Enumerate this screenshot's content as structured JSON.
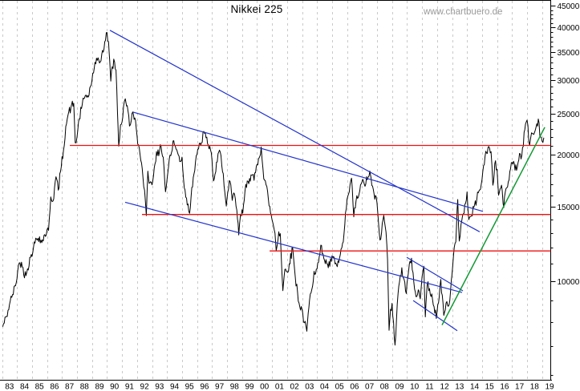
{
  "title": "Nikkei 225",
  "watermark": "www.chartbuero.de",
  "colors": {
    "price": "#000000",
    "trend": "#2233cc",
    "support": "#ee1111",
    "uptrend": "#119933",
    "grid": "#c9c9c9",
    "axis": "#000000",
    "watermark": "#9a9a9a"
  },
  "chart_data": {
    "type": "line",
    "title": "Nikkei 225",
    "x_axis": {
      "unit": "year",
      "first_year": 1983,
      "last_year": 2019,
      "labels": [
        "83",
        "84",
        "85",
        "86",
        "87",
        "88",
        "89",
        "90",
        "91",
        "92",
        "93",
        "94",
        "95",
        "96",
        "97",
        "98",
        "99",
        "00",
        "01",
        "02",
        "03",
        "04",
        "05",
        "06",
        "07",
        "08",
        "09",
        "10",
        "11",
        "12",
        "13",
        "14",
        "15",
        "16",
        "17",
        "18",
        "19"
      ]
    },
    "y_axis": {
      "scale": "log",
      "labeled_ticks": [
        45000,
        40000,
        35000,
        30000,
        25000,
        20000,
        15000,
        10000
      ],
      "minor_tick_step": 1000,
      "minor_tick_min": 6000,
      "minor_tick_max": 45000,
      "legend_position": "none",
      "grid": "vertical-dashed"
    },
    "series": [
      {
        "name": "Nikkei 225",
        "color_key": "price",
        "points": [
          [
            1983.05,
            7800
          ],
          [
            1983.3,
            8250
          ],
          [
            1983.5,
            8800
          ],
          [
            1983.7,
            9300
          ],
          [
            1983.9,
            9750
          ],
          [
            1984.1,
            10900
          ],
          [
            1984.3,
            11100
          ],
          [
            1984.45,
            10350
          ],
          [
            1984.7,
            10700
          ],
          [
            1984.9,
            11400
          ],
          [
            1985.1,
            12050
          ],
          [
            1985.3,
            12600
          ],
          [
            1985.5,
            12750
          ],
          [
            1985.65,
            12350
          ],
          [
            1985.85,
            12900
          ],
          [
            1986.1,
            13200
          ],
          [
            1986.25,
            15850
          ],
          [
            1986.4,
            15500
          ],
          [
            1986.6,
            17700
          ],
          [
            1986.75,
            16450
          ],
          [
            1986.9,
            18200
          ],
          [
            1987.1,
            20500
          ],
          [
            1987.25,
            23300
          ],
          [
            1987.4,
            24800
          ],
          [
            1987.6,
            25900
          ],
          [
            1987.78,
            26450
          ],
          [
            1987.88,
            21300
          ],
          [
            1988.0,
            22000
          ],
          [
            1988.15,
            24300
          ],
          [
            1988.3,
            25700
          ],
          [
            1988.45,
            27100
          ],
          [
            1988.6,
            27650
          ],
          [
            1988.75,
            27350
          ],
          [
            1988.9,
            29000
          ],
          [
            1989.1,
            31200
          ],
          [
            1989.25,
            32800
          ],
          [
            1989.4,
            33900
          ],
          [
            1989.5,
            32950
          ],
          [
            1989.65,
            34600
          ],
          [
            1989.8,
            35650
          ],
          [
            1989.9,
            37300
          ],
          [
            1990.0,
            38920
          ],
          [
            1990.1,
            37000
          ],
          [
            1990.18,
            33300
          ],
          [
            1990.25,
            29850
          ],
          [
            1990.35,
            32300
          ],
          [
            1990.5,
            33150
          ],
          [
            1990.6,
            31700
          ],
          [
            1990.7,
            25000
          ],
          [
            1990.78,
            20920
          ],
          [
            1990.9,
            23500
          ],
          [
            1991.0,
            23850
          ],
          [
            1991.1,
            26000
          ],
          [
            1991.22,
            27100
          ],
          [
            1991.35,
            26100
          ],
          [
            1991.5,
            23350
          ],
          [
            1991.62,
            24100
          ],
          [
            1991.72,
            25220
          ],
          [
            1991.85,
            24400
          ],
          [
            1991.95,
            22980
          ],
          [
            1992.1,
            21050
          ],
          [
            1992.25,
            19350
          ],
          [
            1992.4,
            17550
          ],
          [
            1992.5,
            16450
          ],
          [
            1992.62,
            14310
          ],
          [
            1992.72,
            18250
          ],
          [
            1992.85,
            17100
          ],
          [
            1993.0,
            16930
          ],
          [
            1993.15,
            18600
          ],
          [
            1993.3,
            20300
          ],
          [
            1993.45,
            19850
          ],
          [
            1993.6,
            20950
          ],
          [
            1993.75,
            19700
          ],
          [
            1993.9,
            16300
          ],
          [
            1994.0,
            17420
          ],
          [
            1994.15,
            19500
          ],
          [
            1994.3,
            20200
          ],
          [
            1994.45,
            21550
          ],
          [
            1994.6,
            20600
          ],
          [
            1994.75,
            19950
          ],
          [
            1994.9,
            19250
          ],
          [
            1995.0,
            19700
          ],
          [
            1995.15,
            16650
          ],
          [
            1995.3,
            15750
          ],
          [
            1995.5,
            14490
          ],
          [
            1995.65,
            16700
          ],
          [
            1995.8,
            18000
          ],
          [
            1995.95,
            19870
          ],
          [
            1996.1,
            20600
          ],
          [
            1996.3,
            21300
          ],
          [
            1996.45,
            22670
          ],
          [
            1996.6,
            21900
          ],
          [
            1996.7,
            21200
          ],
          [
            1996.85,
            20900
          ],
          [
            1997.0,
            19360
          ],
          [
            1997.1,
            17300
          ],
          [
            1997.25,
            18200
          ],
          [
            1997.45,
            20250
          ],
          [
            1997.6,
            19850
          ],
          [
            1997.75,
            18000
          ],
          [
            1997.85,
            16300
          ],
          [
            1997.95,
            15080
          ],
          [
            1998.1,
            16550
          ],
          [
            1998.2,
            17260
          ],
          [
            1998.35,
            15550
          ],
          [
            1998.5,
            16100
          ],
          [
            1998.65,
            14750
          ],
          [
            1998.78,
            12880
          ],
          [
            1998.9,
            14350
          ],
          [
            1999.05,
            14500
          ],
          [
            1999.2,
            16380
          ],
          [
            1999.35,
            17300
          ],
          [
            1999.5,
            17530
          ],
          [
            1999.65,
            17850
          ],
          [
            1999.8,
            17350
          ],
          [
            2000.0,
            18930
          ],
          [
            2000.1,
            19540
          ],
          [
            2000.28,
            20830
          ],
          [
            2000.45,
            17500
          ],
          [
            2000.6,
            16950
          ],
          [
            2000.75,
            15750
          ],
          [
            2000.9,
            14540
          ],
          [
            2001.05,
            13790
          ],
          [
            2001.2,
            13000
          ],
          [
            2001.28,
            11820
          ],
          [
            2001.45,
            13100
          ],
          [
            2001.55,
            12970
          ],
          [
            2001.72,
            9500
          ],
          [
            2001.85,
            10650
          ],
          [
            2002.0,
            10540
          ],
          [
            2002.15,
            11000
          ],
          [
            2002.38,
            11980
          ],
          [
            2002.55,
            10220
          ],
          [
            2002.7,
            9420
          ],
          [
            2002.85,
            8700
          ],
          [
            2003.0,
            8580
          ],
          [
            2003.15,
            7970
          ],
          [
            2003.32,
            7610
          ],
          [
            2003.5,
            9000
          ],
          [
            2003.65,
            9560
          ],
          [
            2003.8,
            10560
          ],
          [
            2003.95,
            10680
          ],
          [
            2004.1,
            11100
          ],
          [
            2004.3,
            12160
          ],
          [
            2004.5,
            11200
          ],
          [
            2004.65,
            11000
          ],
          [
            2004.85,
            10850
          ],
          [
            2005.0,
            11490
          ],
          [
            2005.2,
            11000
          ],
          [
            2005.35,
            10830
          ],
          [
            2005.55,
            11560
          ],
          [
            2005.75,
            12400
          ],
          [
            2005.95,
            14870
          ],
          [
            2006.1,
            16110
          ],
          [
            2006.3,
            17560
          ],
          [
            2006.45,
            14220
          ],
          [
            2006.6,
            15500
          ],
          [
            2006.8,
            16100
          ],
          [
            2007.0,
            17220
          ],
          [
            2007.15,
            17000
          ],
          [
            2007.35,
            17400
          ],
          [
            2007.52,
            18260
          ],
          [
            2007.65,
            16870
          ],
          [
            2007.8,
            16100
          ],
          [
            2008.0,
            15310
          ],
          [
            2008.15,
            13000
          ],
          [
            2008.25,
            12600
          ],
          [
            2008.45,
            14340
          ],
          [
            2008.6,
            13070
          ],
          [
            2008.7,
            11260
          ],
          [
            2008.8,
            7650
          ],
          [
            2008.9,
            8580
          ],
          [
            2009.0,
            8860
          ],
          [
            2009.1,
            7990
          ],
          [
            2009.2,
            7055
          ],
          [
            2009.35,
            8830
          ],
          [
            2009.5,
            9960
          ],
          [
            2009.65,
            10770
          ],
          [
            2009.8,
            10100
          ],
          [
            2009.95,
            9350
          ],
          [
            2010.1,
            10550
          ],
          [
            2010.3,
            11340
          ],
          [
            2010.45,
            9970
          ],
          [
            2010.6,
            9190
          ],
          [
            2010.75,
            9540
          ],
          [
            2010.88,
            9080
          ],
          [
            2011.0,
            10230
          ],
          [
            2011.12,
            10860
          ],
          [
            2011.22,
            8230
          ],
          [
            2011.35,
            9850
          ],
          [
            2011.5,
            9600
          ],
          [
            2011.65,
            9330
          ],
          [
            2011.8,
            8700
          ],
          [
            2011.95,
            8160
          ],
          [
            2012.1,
            8900
          ],
          [
            2012.25,
            10100
          ],
          [
            2012.45,
            8300
          ],
          [
            2012.6,
            8870
          ],
          [
            2012.75,
            8720
          ],
          [
            2012.9,
            9450
          ],
          [
            2013.0,
            10400
          ],
          [
            2013.1,
            11560
          ],
          [
            2013.25,
            12400
          ],
          [
            2013.38,
            15630
          ],
          [
            2013.48,
            12450
          ],
          [
            2013.6,
            13650
          ],
          [
            2013.75,
            14450
          ],
          [
            2013.9,
            15300
          ],
          [
            2014.0,
            16290
          ],
          [
            2014.12,
            14000
          ],
          [
            2014.3,
            14300
          ],
          [
            2014.5,
            15160
          ],
          [
            2014.65,
            15660
          ],
          [
            2014.8,
            16400
          ],
          [
            2015.0,
            17450
          ],
          [
            2015.2,
            19750
          ],
          [
            2015.45,
            20870
          ],
          [
            2015.6,
            20300
          ],
          [
            2015.72,
            16900
          ],
          [
            2015.85,
            19030
          ],
          [
            2016.0,
            18450
          ],
          [
            2016.1,
            16000
          ],
          [
            2016.3,
            16900
          ],
          [
            2016.45,
            14950
          ],
          [
            2016.6,
            16600
          ],
          [
            2016.8,
            17400
          ],
          [
            2016.95,
            19110
          ],
          [
            2017.1,
            19250
          ],
          [
            2017.3,
            18330
          ],
          [
            2017.5,
            20100
          ],
          [
            2017.65,
            19900
          ],
          [
            2017.85,
            22900
          ],
          [
            2018.0,
            24120
          ],
          [
            2018.17,
            21000
          ],
          [
            2018.3,
            22500
          ],
          [
            2018.45,
            22300
          ],
          [
            2018.6,
            23200
          ],
          [
            2018.75,
            24270
          ],
          [
            2018.9,
            22000
          ],
          [
            2019.0,
            21500
          ],
          [
            2019.12,
            21900
          ]
        ]
      }
    ],
    "trendlines": [
      {
        "name": "primary-downtrend",
        "color_key": "trend",
        "from": [
          1990.19,
          39400
        ],
        "to": [
          2014.84,
          13100
        ]
      },
      {
        "name": "secondary-downtrend",
        "color_key": "trend",
        "from": [
          1991.74,
          25200
        ],
        "to": [
          2015.06,
          14650
        ]
      },
      {
        "name": "lower-downtrend",
        "color_key": "trend",
        "from": [
          1991.21,
          15400
        ],
        "to": [
          2013.67,
          9400
        ]
      },
      {
        "name": "wedge-upper",
        "color_key": "trend",
        "from": [
          2009.98,
          11400
        ],
        "to": [
          2013.72,
          9490
        ]
      },
      {
        "name": "wedge-lower",
        "color_key": "trend",
        "from": [
          2010.41,
          9000
        ],
        "to": [
          2013.35,
          7630
        ]
      },
      {
        "name": "uptrend",
        "color_key": "uptrend",
        "from": [
          2012.33,
          7870
        ],
        "to": [
          2019.18,
          23200
        ]
      }
    ],
    "support_levels": [
      {
        "value": 21000,
        "from_year": 1987.52
      },
      {
        "value": 14400,
        "from_year": 1992.33
      },
      {
        "value": 11800,
        "from_year": 2000.84
      }
    ]
  }
}
